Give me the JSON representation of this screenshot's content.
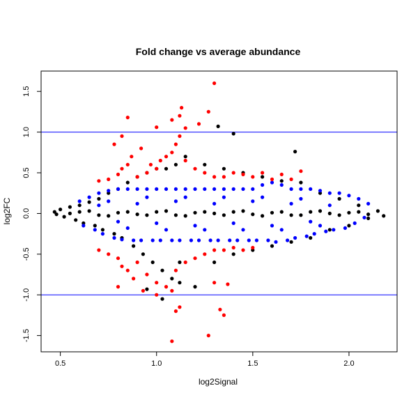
{
  "chart_data": {
    "type": "scatter",
    "title": "Fold change vs average abundance",
    "xlabel": "log2Signal",
    "ylabel": "log2FC",
    "xlim": [
      0.4,
      2.25
    ],
    "ylim": [
      -1.7,
      1.75
    ],
    "x_ticks": [
      {
        "value": 0.5,
        "label": "0.5"
      },
      {
        "value": 1.0,
        "label": "1.0"
      },
      {
        "value": 1.5,
        "label": "1.5"
      },
      {
        "value": 2.0,
        "label": "2.0"
      }
    ],
    "y_ticks": [
      {
        "value": -1.5,
        "label": "-1.5"
      },
      {
        "value": -1.0,
        "label": "-1.0"
      },
      {
        "value": -0.5,
        "label": "-0.5"
      },
      {
        "value": 0.0,
        "label": "0.0"
      },
      {
        "value": 0.5,
        "label": "0.5"
      },
      {
        "value": 1.0,
        "label": "1.0"
      },
      {
        "value": 1.5,
        "label": "1.5"
      }
    ],
    "reference_lines": [
      {
        "axis": "y",
        "value": 1.0,
        "color": "#0000ff"
      },
      {
        "axis": "y",
        "value": -1.0,
        "color": "#0000ff"
      }
    ],
    "series": [
      {
        "color": "#000000",
        "points": [
          [
            0.47,
            0.02
          ],
          [
            0.48,
            -0.01
          ],
          [
            0.5,
            0.05
          ],
          [
            0.52,
            -0.04
          ],
          [
            0.55,
            0.08
          ],
          [
            0.58,
            -0.08
          ],
          [
            0.6,
            0.1
          ],
          [
            0.62,
            -0.12
          ],
          [
            0.65,
            0.14
          ],
          [
            0.68,
            -0.15
          ],
          [
            0.7,
            0.18
          ],
          [
            0.72,
            -0.2
          ],
          [
            0.75,
            0.25
          ],
          [
            0.78,
            -0.25
          ],
          [
            0.8,
            0.3
          ],
          [
            0.82,
            -0.3
          ],
          [
            0.85,
            0.38
          ],
          [
            0.88,
            -0.4
          ],
          [
            0.9,
            0.45
          ],
          [
            0.93,
            -0.5
          ],
          [
            0.95,
            0.5
          ],
          [
            0.98,
            -0.6
          ],
          [
            1.0,
            0.55
          ],
          [
            1.03,
            -0.7
          ],
          [
            1.05,
            0.55
          ],
          [
            1.08,
            -0.8
          ],
          [
            1.1,
            0.6
          ],
          [
            1.12,
            -0.85
          ],
          [
            1.15,
            0.7
          ],
          [
            1.2,
            -0.9
          ],
          [
            1.25,
            0.6
          ],
          [
            1.3,
            -0.6
          ],
          [
            1.35,
            0.55
          ],
          [
            1.4,
            -0.5
          ],
          [
            1.45,
            0.5
          ],
          [
            1.5,
            -0.45
          ],
          [
            1.55,
            0.45
          ],
          [
            1.6,
            -0.4
          ],
          [
            1.65,
            0.4
          ],
          [
            1.7,
            -0.35
          ],
          [
            1.75,
            0.38
          ],
          [
            1.8,
            -0.3
          ],
          [
            1.85,
            0.25
          ],
          [
            1.9,
            -0.2
          ],
          [
            1.95,
            0.18
          ],
          [
            2.0,
            -0.15
          ],
          [
            2.05,
            0.1
          ],
          [
            2.1,
            -0.06
          ],
          [
            2.15,
            0.03
          ],
          [
            2.18,
            -0.03
          ],
          [
            1.32,
            1.07
          ],
          [
            1.4,
            0.98
          ],
          [
            1.72,
            0.76
          ],
          [
            0.95,
            -0.93
          ],
          [
            1.03,
            -1.05
          ],
          [
            1.12,
            -0.6
          ],
          [
            0.6,
            0.02
          ],
          [
            0.7,
            -0.02
          ],
          [
            0.8,
            0.01
          ],
          [
            0.9,
            -0.01
          ],
          [
            1.0,
            0.02
          ],
          [
            1.1,
            -0.02
          ],
          [
            1.2,
            0.01
          ],
          [
            1.3,
            0.0
          ],
          [
            1.4,
            0.02
          ],
          [
            1.5,
            -0.01
          ],
          [
            1.6,
            0.01
          ],
          [
            1.7,
            -0.02
          ],
          [
            1.8,
            0.02
          ],
          [
            1.9,
            0.0
          ],
          [
            2.0,
            0.01
          ],
          [
            2.1,
            -0.01
          ],
          [
            0.55,
            0.0
          ],
          [
            0.65,
            0.03
          ],
          [
            0.75,
            -0.03
          ],
          [
            0.85,
            0.02
          ],
          [
            0.95,
            -0.02
          ],
          [
            1.05,
            0.03
          ],
          [
            1.15,
            -0.03
          ],
          [
            1.25,
            0.02
          ],
          [
            1.35,
            -0.02
          ],
          [
            1.45,
            0.03
          ],
          [
            1.55,
            -0.03
          ],
          [
            1.65,
            0.02
          ],
          [
            1.75,
            -0.02
          ],
          [
            1.85,
            0.03
          ],
          [
            1.95,
            -0.02
          ],
          [
            2.05,
            0.02
          ]
        ]
      },
      {
        "color": "#0000ff",
        "points": [
          [
            0.6,
            0.15
          ],
          [
            0.62,
            -0.15
          ],
          [
            0.65,
            0.2
          ],
          [
            0.68,
            -0.2
          ],
          [
            0.7,
            0.25
          ],
          [
            0.72,
            -0.25
          ],
          [
            0.75,
            0.28
          ],
          [
            0.78,
            -0.3
          ],
          [
            0.8,
            0.3
          ],
          [
            0.82,
            -0.32
          ],
          [
            0.85,
            0.3
          ],
          [
            0.88,
            -0.33
          ],
          [
            0.9,
            0.3
          ],
          [
            0.92,
            -0.33
          ],
          [
            0.95,
            0.3
          ],
          [
            0.98,
            -0.33
          ],
          [
            1.0,
            0.3
          ],
          [
            1.02,
            -0.33
          ],
          [
            1.05,
            0.3
          ],
          [
            1.08,
            -0.33
          ],
          [
            1.1,
            0.3
          ],
          [
            1.12,
            -0.33
          ],
          [
            1.15,
            0.3
          ],
          [
            1.18,
            -0.33
          ],
          [
            1.2,
            0.3
          ],
          [
            1.22,
            -0.33
          ],
          [
            1.25,
            0.3
          ],
          [
            1.28,
            -0.33
          ],
          [
            1.3,
            0.3
          ],
          [
            1.32,
            -0.33
          ],
          [
            1.35,
            0.3
          ],
          [
            1.38,
            -0.33
          ],
          [
            1.4,
            0.3
          ],
          [
            1.42,
            -0.33
          ],
          [
            1.45,
            0.3
          ],
          [
            1.48,
            -0.33
          ],
          [
            1.5,
            0.3
          ],
          [
            1.52,
            -0.33
          ],
          [
            1.55,
            0.35
          ],
          [
            1.58,
            -0.33
          ],
          [
            1.6,
            0.38
          ],
          [
            1.62,
            -0.35
          ],
          [
            1.65,
            0.35
          ],
          [
            1.68,
            -0.33
          ],
          [
            1.7,
            0.3
          ],
          [
            1.72,
            -0.3
          ],
          [
            1.75,
            0.3
          ],
          [
            1.78,
            -0.28
          ],
          [
            1.8,
            0.3
          ],
          [
            1.82,
            -0.25
          ],
          [
            1.85,
            0.28
          ],
          [
            1.88,
            -0.22
          ],
          [
            1.9,
            0.25
          ],
          [
            1.92,
            -0.2
          ],
          [
            1.95,
            0.25
          ],
          [
            1.98,
            -0.18
          ],
          [
            2.0,
            0.22
          ],
          [
            2.03,
            -0.12
          ],
          [
            2.05,
            0.18
          ],
          [
            2.08,
            -0.05
          ],
          [
            2.1,
            0.12
          ],
          [
            0.7,
            0.1
          ],
          [
            0.8,
            -0.1
          ],
          [
            0.9,
            0.12
          ],
          [
            1.0,
            -0.12
          ],
          [
            1.1,
            0.15
          ],
          [
            1.2,
            -0.15
          ],
          [
            1.3,
            0.12
          ],
          [
            1.4,
            -0.12
          ],
          [
            1.5,
            0.15
          ],
          [
            1.6,
            -0.15
          ],
          [
            1.7,
            0.12
          ],
          [
            1.8,
            -0.1
          ],
          [
            1.9,
            0.1
          ],
          [
            0.75,
            0.15
          ],
          [
            0.85,
            -0.18
          ],
          [
            0.95,
            0.2
          ],
          [
            1.05,
            -0.2
          ],
          [
            1.15,
            0.2
          ],
          [
            1.25,
            -0.2
          ],
          [
            1.35,
            0.2
          ],
          [
            1.45,
            -0.2
          ],
          [
            1.55,
            0.2
          ],
          [
            1.65,
            -0.2
          ],
          [
            1.75,
            0.18
          ],
          [
            1.85,
            -0.15
          ]
        ]
      },
      {
        "color": "#ff0000",
        "points": [
          [
            0.7,
            0.4
          ],
          [
            0.75,
            0.42
          ],
          [
            0.8,
            0.48
          ],
          [
            0.82,
            0.55
          ],
          [
            0.85,
            0.6
          ],
          [
            0.87,
            0.7
          ],
          [
            0.9,
            0.45
          ],
          [
            0.92,
            0.8
          ],
          [
            0.95,
            0.5
          ],
          [
            0.97,
            0.6
          ],
          [
            1.0,
            0.55
          ],
          [
            1.02,
            0.65
          ],
          [
            1.05,
            0.7
          ],
          [
            1.08,
            0.75
          ],
          [
            1.1,
            0.85
          ],
          [
            1.12,
            0.95
          ],
          [
            1.15,
            0.65
          ],
          [
            1.2,
            0.55
          ],
          [
            1.25,
            0.5
          ],
          [
            1.3,
            0.45
          ],
          [
            1.35,
            0.45
          ],
          [
            1.4,
            0.5
          ],
          [
            1.45,
            0.48
          ],
          [
            1.5,
            0.45
          ],
          [
            1.55,
            0.5
          ],
          [
            1.6,
            0.42
          ],
          [
            1.65,
            0.48
          ],
          [
            1.7,
            0.42
          ],
          [
            1.75,
            0.52
          ],
          [
            1.3,
            1.6
          ],
          [
            1.27,
            1.25
          ],
          [
            1.13,
            1.3
          ],
          [
            1.15,
            1.05
          ],
          [
            1.22,
            1.1
          ],
          [
            1.12,
            1.2
          ],
          [
            1.08,
            1.15
          ],
          [
            0.85,
            1.18
          ],
          [
            1.0,
            1.06
          ],
          [
            0.7,
            -0.45
          ],
          [
            0.75,
            -0.5
          ],
          [
            0.8,
            -0.55
          ],
          [
            0.82,
            -0.65
          ],
          [
            0.85,
            -0.7
          ],
          [
            0.88,
            -0.8
          ],
          [
            0.9,
            -0.6
          ],
          [
            0.95,
            -0.75
          ],
          [
            1.0,
            -0.85
          ],
          [
            1.05,
            -0.9
          ],
          [
            1.08,
            -0.95
          ],
          [
            1.1,
            -0.7
          ],
          [
            1.15,
            -0.6
          ],
          [
            1.2,
            -0.55
          ],
          [
            1.25,
            -0.5
          ],
          [
            1.3,
            -0.45
          ],
          [
            1.35,
            -0.45
          ],
          [
            1.4,
            -0.42
          ],
          [
            1.45,
            -0.45
          ],
          [
            1.5,
            -0.42
          ],
          [
            1.12,
            -1.15
          ],
          [
            1.1,
            -1.2
          ],
          [
            1.33,
            -1.18
          ],
          [
            1.35,
            -1.25
          ],
          [
            1.27,
            -1.5
          ],
          [
            1.3,
            -0.85
          ],
          [
            1.37,
            -0.87
          ],
          [
            0.8,
            -0.9
          ],
          [
            1.08,
            -1.57
          ],
          [
            0.93,
            -0.95
          ],
          [
            1.0,
            -1.0
          ],
          [
            0.78,
            0.85
          ],
          [
            0.82,
            0.95
          ]
        ]
      }
    ]
  }
}
